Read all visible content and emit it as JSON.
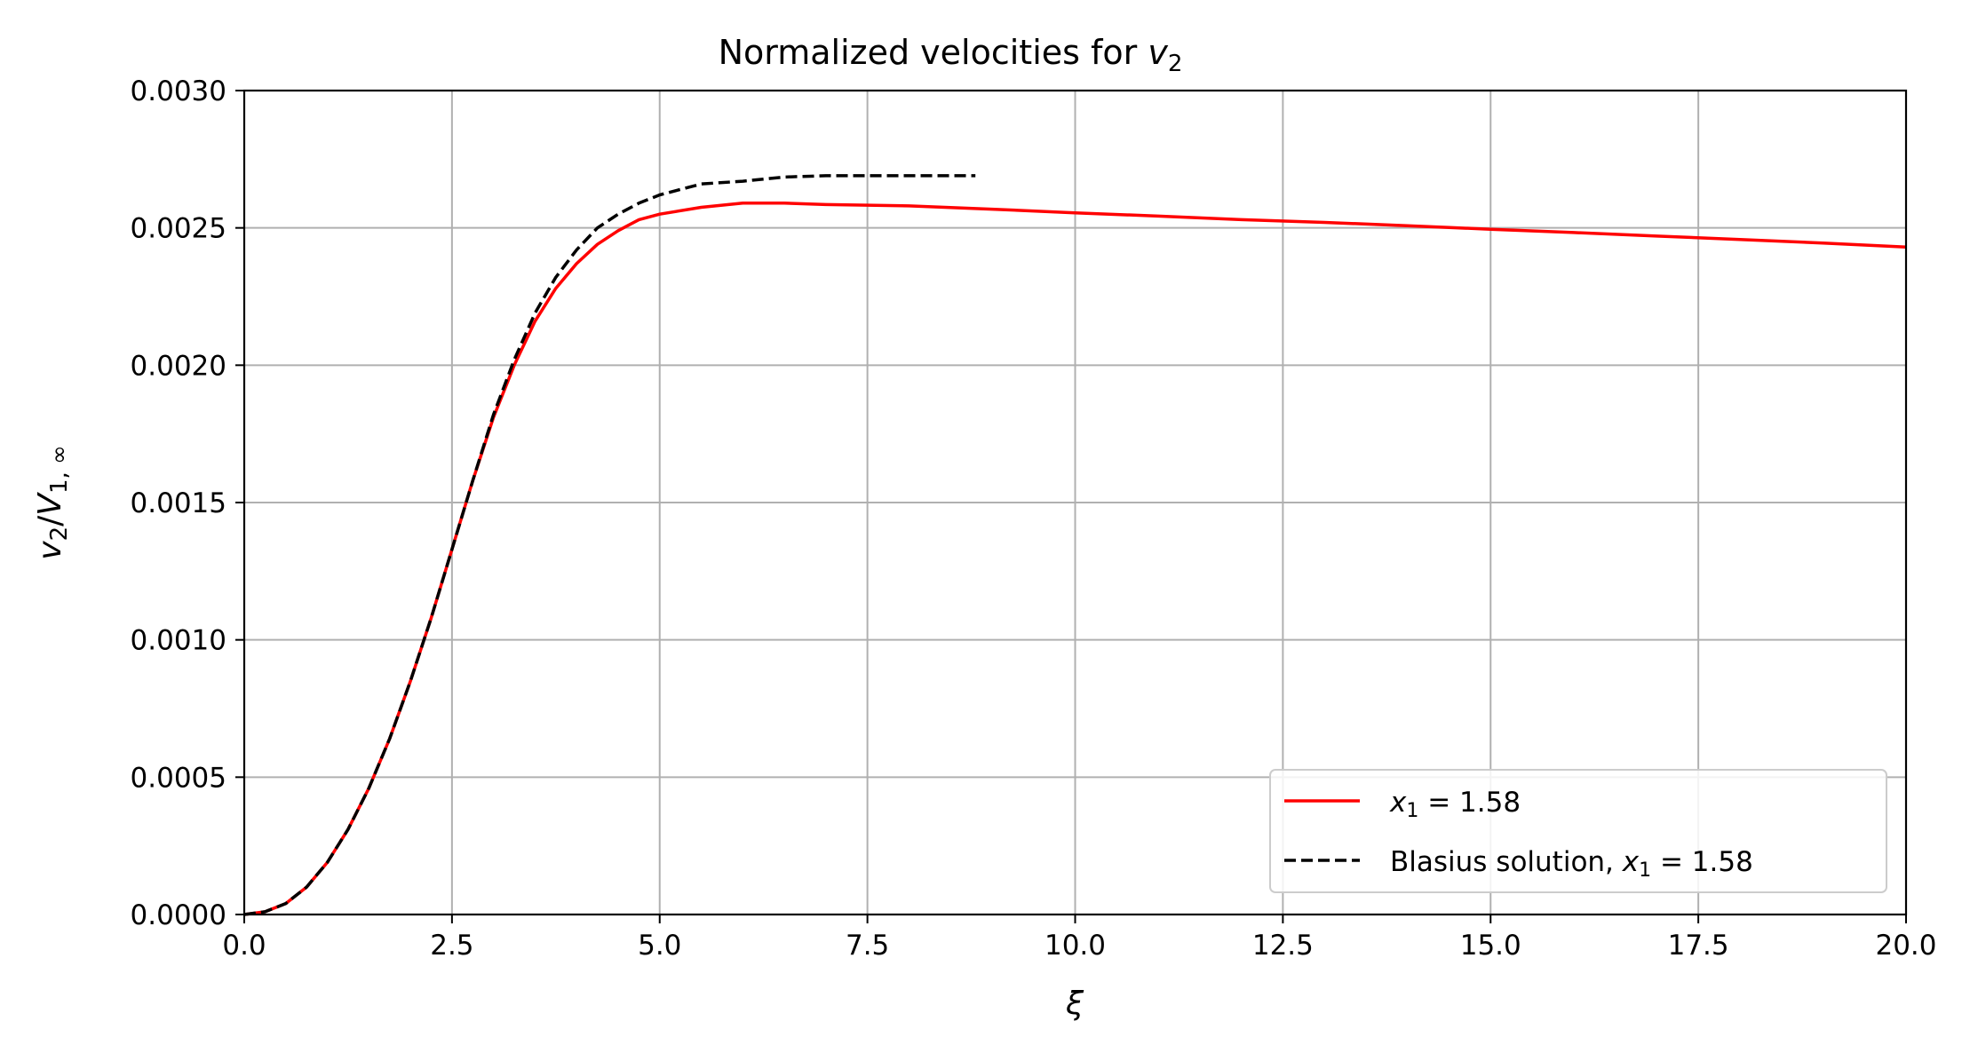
{
  "chart_data": {
    "type": "line",
    "title": "Normalized velocities for",
    "title_var": "v",
    "title_var_sub": "2",
    "xlabel": "ξ",
    "ylabel": {
      "v": "v",
      "v_sub": "2",
      "slash": "/",
      "V": "V",
      "V_sub": "1, ∞"
    },
    "xlim": [
      0,
      20
    ],
    "ylim": [
      0,
      0.003
    ],
    "x_ticks": [
      "0.0",
      "2.5",
      "5.0",
      "7.5",
      "10.0",
      "12.5",
      "15.0",
      "17.5",
      "20.0"
    ],
    "y_ticks": [
      "0.0000",
      "0.0005",
      "0.0010",
      "0.0015",
      "0.0020",
      "0.0025",
      "0.0030"
    ],
    "grid": true,
    "legend_position": "lower-right",
    "series": [
      {
        "name": "x1 = 1.58",
        "legend": {
          "var": "x",
          "sub": "1",
          "rest": " = 1.58"
        },
        "color": "#ff0000",
        "dash": "solid",
        "points": [
          [
            0.0,
            0.0
          ],
          [
            0.25,
            1e-05
          ],
          [
            0.5,
            4e-05
          ],
          [
            0.75,
            0.0001
          ],
          [
            1.0,
            0.00019
          ],
          [
            1.25,
            0.00031
          ],
          [
            1.5,
            0.00046
          ],
          [
            1.75,
            0.00064
          ],
          [
            2.0,
            0.00085
          ],
          [
            2.25,
            0.00108
          ],
          [
            2.5,
            0.00133
          ],
          [
            2.75,
            0.00158
          ],
          [
            3.0,
            0.00181
          ],
          [
            3.25,
            0.002
          ],
          [
            3.5,
            0.00216
          ],
          [
            3.75,
            0.00228
          ],
          [
            4.0,
            0.00237
          ],
          [
            4.25,
            0.00244
          ],
          [
            4.5,
            0.00249
          ],
          [
            4.75,
            0.00253
          ],
          [
            5.0,
            0.00255
          ],
          [
            5.5,
            0.002575
          ],
          [
            6.0,
            0.00259
          ],
          [
            6.5,
            0.00259
          ],
          [
            7.0,
            0.002585
          ],
          [
            8.0,
            0.00258
          ],
          [
            9.0,
            0.002568
          ],
          [
            10.0,
            0.002555
          ],
          [
            11.0,
            0.002543
          ],
          [
            12.0,
            0.00253
          ],
          [
            13.0,
            0.00252
          ],
          [
            14.0,
            0.002508
          ],
          [
            15.0,
            0.002495
          ],
          [
            16.0,
            0.002483
          ],
          [
            17.0,
            0.00247
          ],
          [
            18.0,
            0.002458
          ],
          [
            19.0,
            0.002445
          ],
          [
            20.0,
            0.00243
          ]
        ]
      },
      {
        "name": "Blasius solution, x1 = 1.58",
        "legend": {
          "prefix": "Blasius solution, ",
          "var": "x",
          "sub": "1",
          "rest": " = 1.58"
        },
        "color": "#000000",
        "dash": "dashed",
        "points": [
          [
            0.0,
            0.0
          ],
          [
            0.25,
            1e-05
          ],
          [
            0.5,
            4e-05
          ],
          [
            0.75,
            0.0001
          ],
          [
            1.0,
            0.00019
          ],
          [
            1.25,
            0.00031
          ],
          [
            1.5,
            0.00046
          ],
          [
            1.75,
            0.00064
          ],
          [
            2.0,
            0.00085
          ],
          [
            2.25,
            0.00108
          ],
          [
            2.5,
            0.00133
          ],
          [
            2.75,
            0.00158
          ],
          [
            3.0,
            0.00182
          ],
          [
            3.25,
            0.00202
          ],
          [
            3.5,
            0.00219
          ],
          [
            3.75,
            0.00232
          ],
          [
            4.0,
            0.00242
          ],
          [
            4.25,
            0.0025
          ],
          [
            4.5,
            0.00255
          ],
          [
            4.75,
            0.00259
          ],
          [
            5.0,
            0.00262
          ],
          [
            5.5,
            0.00266
          ],
          [
            6.0,
            0.00267
          ],
          [
            6.5,
            0.002685
          ],
          [
            7.0,
            0.00269
          ],
          [
            7.5,
            0.00269
          ],
          [
            8.0,
            0.00269
          ],
          [
            8.8,
            0.00269
          ]
        ]
      }
    ]
  }
}
